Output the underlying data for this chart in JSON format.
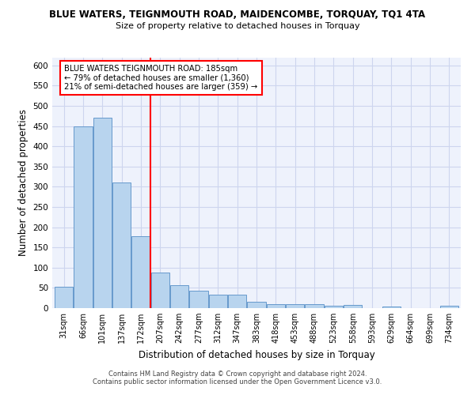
{
  "title": "BLUE WATERS, TEIGNMOUTH ROAD, MAIDENCOMBE, TORQUAY, TQ1 4TA",
  "subtitle": "Size of property relative to detached houses in Torquay",
  "xlabel": "Distribution of detached houses by size in Torquay",
  "ylabel": "Number of detached properties",
  "categories": [
    "31sqm",
    "66sqm",
    "101sqm",
    "137sqm",
    "172sqm",
    "207sqm",
    "242sqm",
    "277sqm",
    "312sqm",
    "347sqm",
    "383sqm",
    "418sqm",
    "453sqm",
    "488sqm",
    "523sqm",
    "558sqm",
    "593sqm",
    "629sqm",
    "664sqm",
    "699sqm",
    "734sqm"
  ],
  "values": [
    53,
    450,
    470,
    310,
    178,
    88,
    57,
    43,
    33,
    33,
    15,
    10,
    10,
    10,
    6,
    8,
    0,
    4,
    0,
    0,
    5
  ],
  "bar_color": "#b8d4ee",
  "bar_edge_color": "#6699cc",
  "red_line_index": 4.5,
  "annotation_text": "BLUE WATERS TEIGNMOUTH ROAD: 185sqm\n← 79% of detached houses are smaller (1,360)\n21% of semi-detached houses are larger (359) →",
  "ylim": [
    0,
    620
  ],
  "yticks": [
    0,
    50,
    100,
    150,
    200,
    250,
    300,
    350,
    400,
    450,
    500,
    550,
    600
  ],
  "footer1": "Contains HM Land Registry data © Crown copyright and database right 2024.",
  "footer2": "Contains public sector information licensed under the Open Government Licence v3.0.",
  "bg_color": "#eef2fc",
  "grid_color": "#cdd5ee"
}
